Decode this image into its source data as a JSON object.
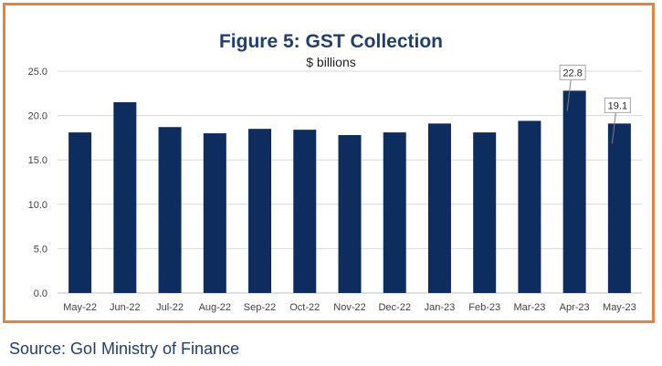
{
  "chart_data": {
    "type": "bar",
    "title": "Figure 5: GST Collection",
    "subtitle": "$ billions",
    "categories": [
      "May-22",
      "Jun-22",
      "Jul-22",
      "Aug-22",
      "Sep-22",
      "Oct-22",
      "Nov-22",
      "Dec-22",
      "Jan-23",
      "Feb-23",
      "Mar-23",
      "Apr-23",
      "May-23"
    ],
    "values": [
      18.1,
      21.5,
      18.7,
      18.0,
      18.5,
      18.4,
      17.8,
      18.1,
      19.1,
      18.1,
      19.4,
      22.8,
      19.1
    ],
    "ylim": [
      0,
      25
    ],
    "yticks": [
      "0.0",
      "5.0",
      "10.0",
      "15.0",
      "20.0",
      "25.0"
    ],
    "ytick_values": [
      0,
      5,
      10,
      15,
      20,
      25
    ],
    "grid": true,
    "bar_color": "#0d2d5e",
    "grid_color": "#d9d9d9",
    "callouts": [
      {
        "category_index": 11,
        "label": "22.8"
      },
      {
        "category_index": 12,
        "label": "19.1"
      }
    ]
  },
  "source": "Source: GoI Ministry of Finance",
  "colors": {
    "frame": "#e8843a",
    "title": "#1f3f73"
  }
}
